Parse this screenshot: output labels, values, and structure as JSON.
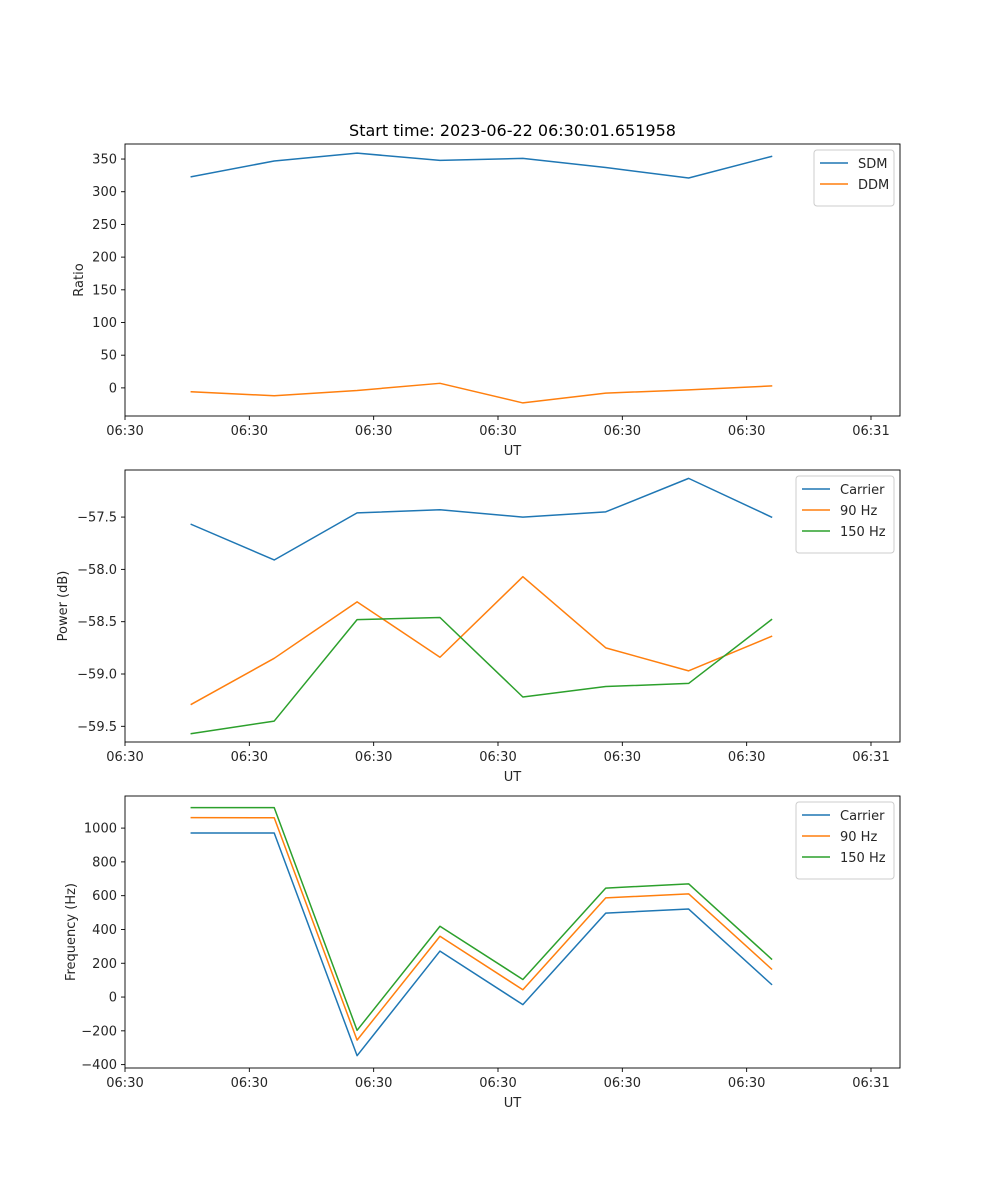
{
  "figure": {
    "title": "Start time: 2023-06-22 06:30:01.651958"
  },
  "chart_data": [
    {
      "type": "line",
      "title": "Start time: 2023-06-22 06:30:01.651958",
      "xlabel": "UT",
      "ylabel": "Ratio",
      "x": [
        1,
        2,
        3,
        4,
        5,
        6,
        7,
        8
      ],
      "xlim": [
        0.2,
        9.55
      ],
      "xticks": [
        0.2,
        1.7,
        3.2,
        4.7,
        6.2,
        7.7,
        9.2
      ],
      "xtick_labels": [
        "06:30",
        "06:30",
        "06:30",
        "06:30",
        "06:30",
        "06:30",
        "06:31"
      ],
      "ylim": [
        -43,
        373
      ],
      "yticks": [
        0,
        50,
        100,
        150,
        200,
        250,
        300,
        350
      ],
      "ytick_labels": [
        "0",
        "50",
        "100",
        "150",
        "200",
        "250",
        "300",
        "350"
      ],
      "grid": false,
      "legend": "top-right",
      "series": [
        {
          "name": "SDM",
          "color": "#1f77b4",
          "values": [
            323,
            347,
            359,
            348,
            351,
            337,
            321,
            354
          ]
        },
        {
          "name": "DDM",
          "color": "#ff7f0e",
          "values": [
            -6,
            -12,
            -4,
            7,
            -23,
            -8,
            -3,
            3
          ]
        }
      ]
    },
    {
      "type": "line",
      "title": "",
      "xlabel": "UT",
      "ylabel": "Power (dB)",
      "x": [
        1,
        2,
        3,
        4,
        5,
        6,
        7,
        8
      ],
      "xlim": [
        0.2,
        9.55
      ],
      "xticks": [
        0.2,
        1.7,
        3.2,
        4.7,
        6.2,
        7.7,
        9.2
      ],
      "xtick_labels": [
        "06:30",
        "06:30",
        "06:30",
        "06:30",
        "06:30",
        "06:30",
        "06:31"
      ],
      "ylim": [
        -59.65,
        -57.05
      ],
      "yticks": [
        -59.5,
        -59.0,
        -58.5,
        -58.0,
        -57.5
      ],
      "ytick_labels": [
        "−59.5",
        "−59.0",
        "−58.5",
        "−58.0",
        "−57.5"
      ],
      "grid": false,
      "legend": "top-right",
      "series": [
        {
          "name": "Carrier",
          "color": "#1f77b4",
          "values": [
            -57.57,
            -57.91,
            -57.46,
            -57.43,
            -57.5,
            -57.45,
            -57.13,
            -57.5
          ]
        },
        {
          "name": "90 Hz",
          "color": "#ff7f0e",
          "values": [
            -59.29,
            -58.85,
            -58.31,
            -58.84,
            -58.07,
            -58.75,
            -58.97,
            -58.64
          ]
        },
        {
          "name": "150 Hz",
          "color": "#2ca02c",
          "values": [
            -59.57,
            -59.45,
            -58.48,
            -58.46,
            -59.22,
            -59.12,
            -59.09,
            -58.48
          ]
        }
      ]
    },
    {
      "type": "line",
      "title": "",
      "xlabel": "UT",
      "ylabel": "Frequency (Hz)",
      "x": [
        1,
        2,
        3,
        4,
        5,
        6,
        7,
        8
      ],
      "xlim": [
        0.2,
        9.55
      ],
      "xticks": [
        0.2,
        1.7,
        3.2,
        4.7,
        6.2,
        7.7,
        9.2
      ],
      "xtick_labels": [
        "06:30",
        "06:30",
        "06:30",
        "06:30",
        "06:30",
        "06:30",
        "06:31"
      ],
      "ylim": [
        -420,
        1190
      ],
      "yticks": [
        -400,
        -200,
        0,
        200,
        400,
        600,
        800,
        1000
      ],
      "ytick_labels": [
        "−400",
        "−200",
        "0",
        "200",
        "400",
        "600",
        "800",
        "1000"
      ],
      "grid": false,
      "legend": "top-right",
      "series": [
        {
          "name": "Carrier",
          "color": "#1f77b4",
          "values": [
            971,
            971,
            -347,
            272,
            -45,
            497,
            521,
            75
          ]
        },
        {
          "name": "90 Hz",
          "color": "#ff7f0e",
          "values": [
            1062,
            1061,
            -255,
            360,
            43,
            587,
            611,
            166
          ]
        },
        {
          "name": "150 Hz",
          "color": "#2ca02c",
          "values": [
            1121,
            1121,
            -197,
            419,
            104,
            645,
            670,
            225
          ]
        }
      ]
    }
  ]
}
